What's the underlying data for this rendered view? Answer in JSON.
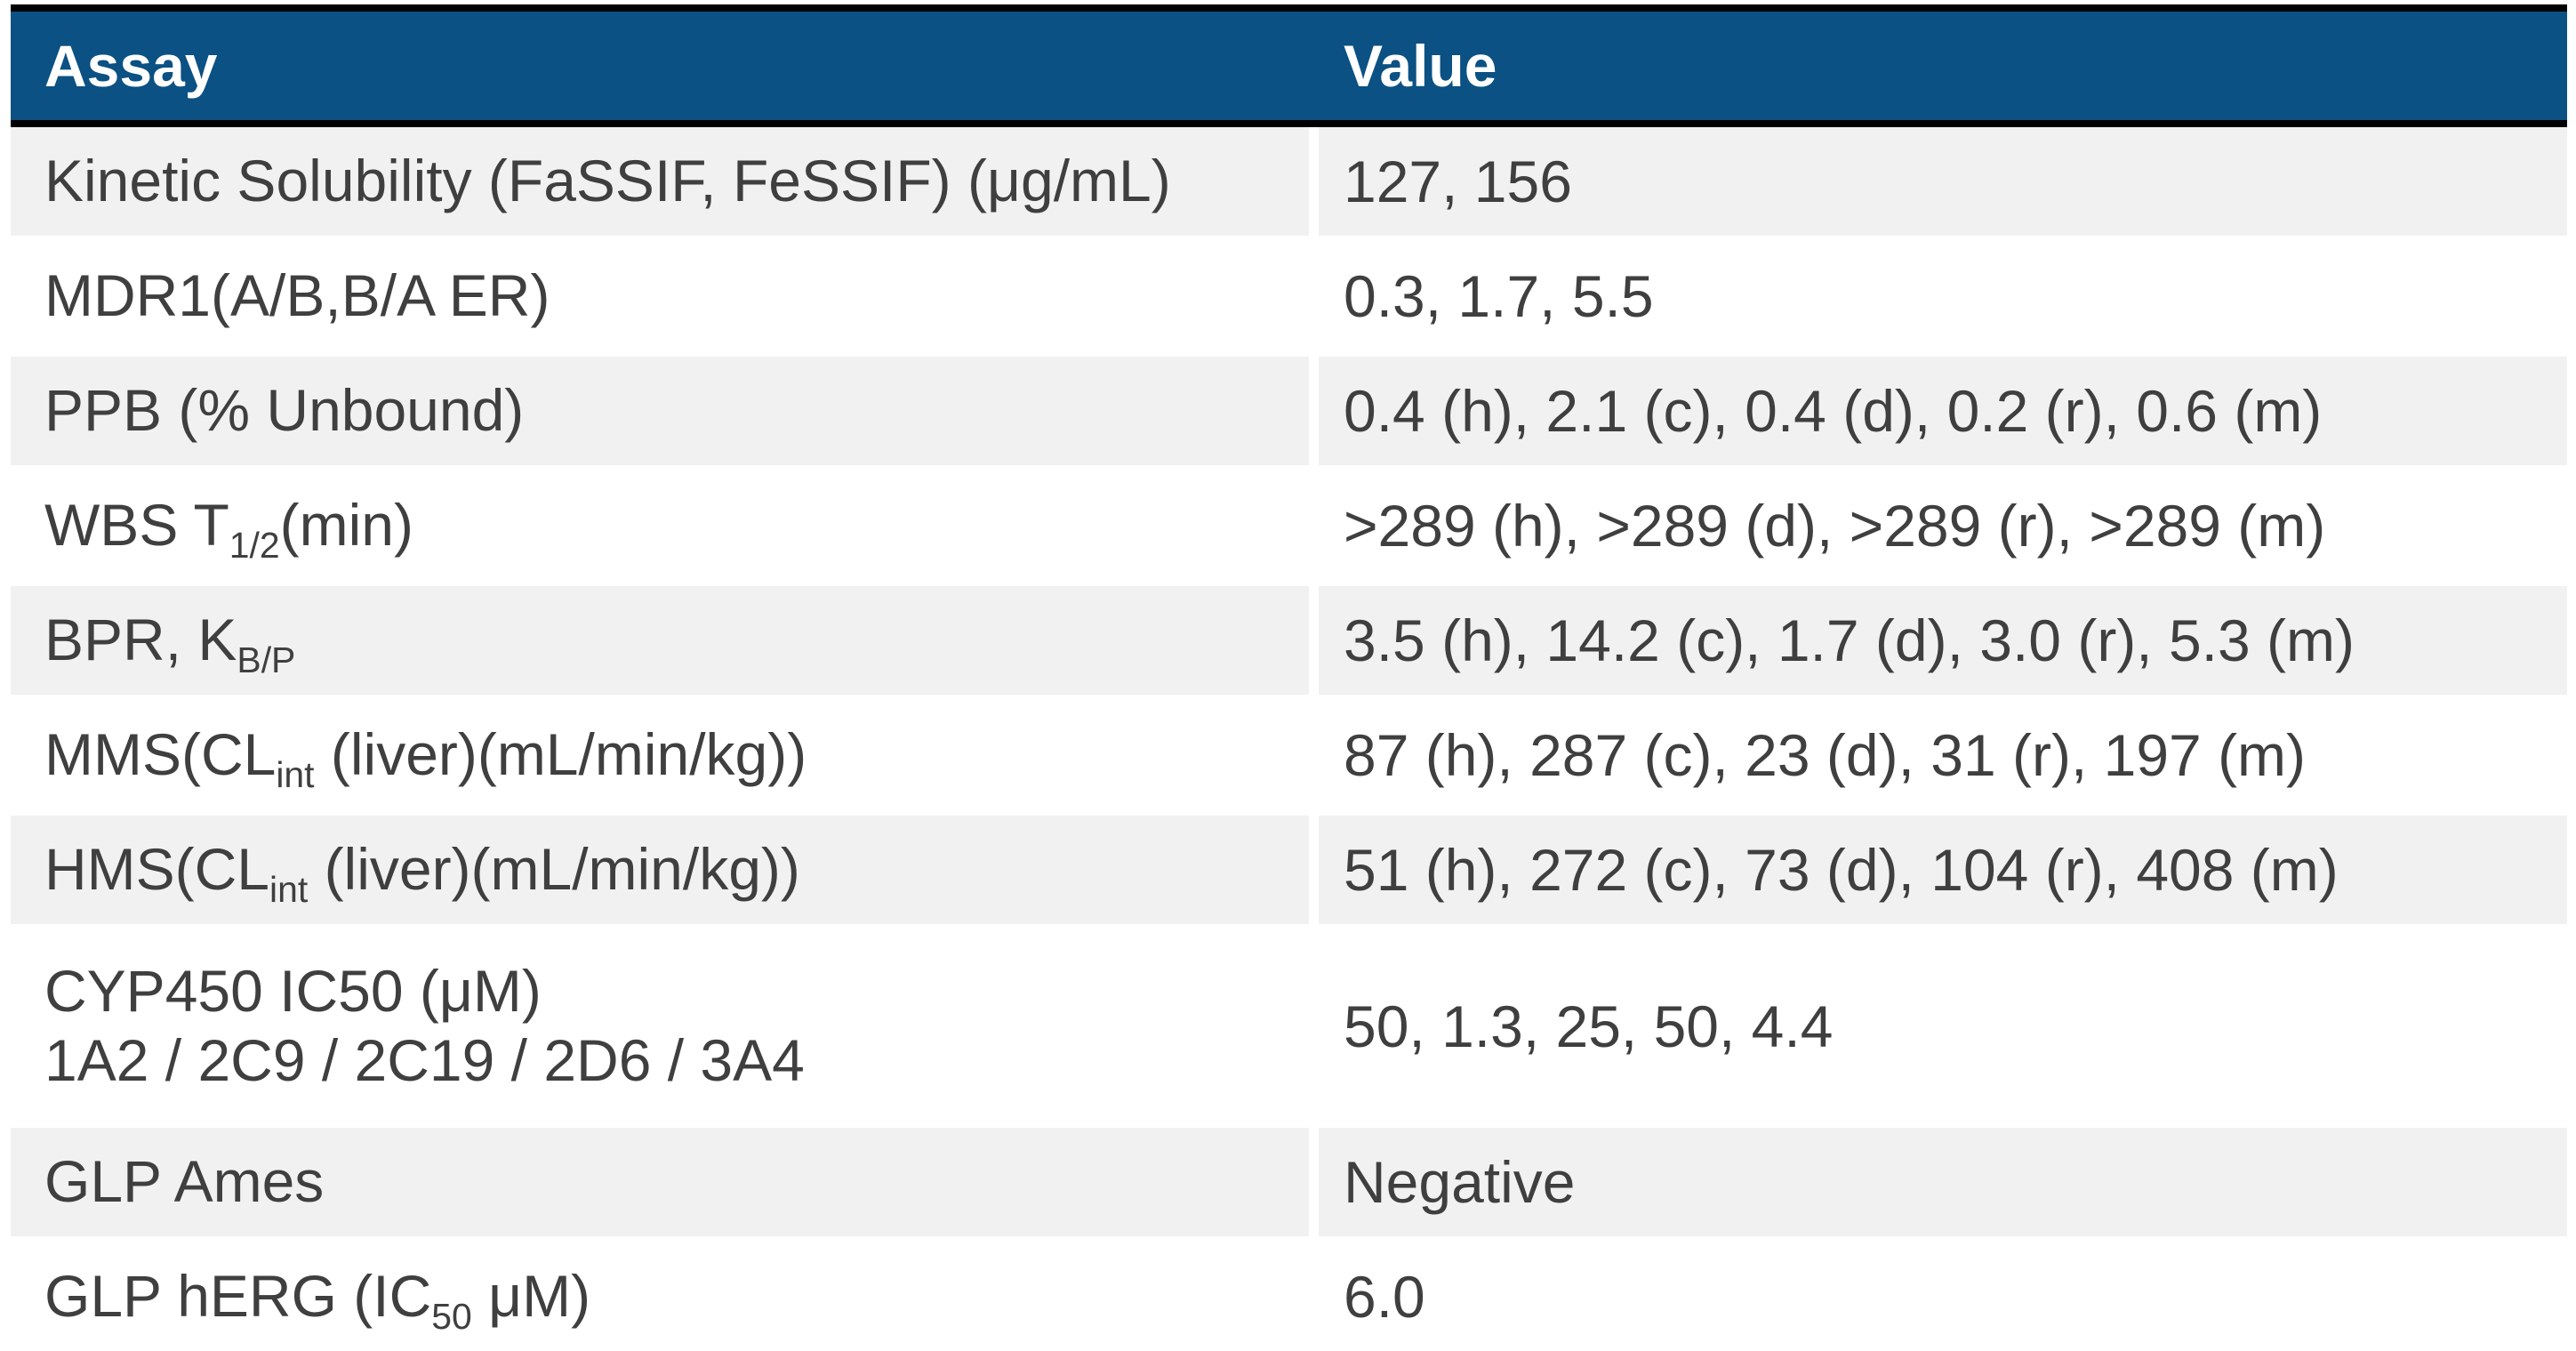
{
  "table": {
    "columns": [
      {
        "label": "Assay"
      },
      {
        "label": "Value"
      }
    ],
    "rows": [
      {
        "assay": [
          {
            "t": "Kinetic Solubility (FaSSIF, FeSSIF) (μg/mL)"
          }
        ],
        "value": "127, 156"
      },
      {
        "assay": [
          {
            "t": "MDR1(A/B,B/A ER)"
          }
        ],
        "value": "0.3, 1.7, 5.5"
      },
      {
        "assay": [
          {
            "t": "PPB (% Unbound)"
          }
        ],
        "value": "0.4 (h), 2.1 (c), 0.4 (d), 0.2 (r), 0.6 (m)"
      },
      {
        "assay": [
          {
            "t": "WBS T"
          },
          {
            "t": "1/2",
            "sub": true
          },
          {
            "t": "(min)"
          }
        ],
        "value": ">289 (h), >289 (d), >289 (r), >289 (m)"
      },
      {
        "assay": [
          {
            "t": "BPR, K"
          },
          {
            "t": "B/P",
            "sub": true
          }
        ],
        "value": "3.5 (h), 14.2 (c), 1.7 (d), 3.0 (r), 5.3 (m)"
      },
      {
        "assay": [
          {
            "t": "MMS(CL"
          },
          {
            "t": "int",
            "sub": true
          },
          {
            "t": " (liver)(mL/min/kg))"
          }
        ],
        "value": "87 (h), 287 (c), 23 (d), 31 (r), 197 (m)"
      },
      {
        "assay": [
          {
            "t": "HMS(CL"
          },
          {
            "t": "int",
            "sub": true
          },
          {
            "t": " (liver)(mL/min/kg))"
          }
        ],
        "value": "51 (h), 272 (c), 73 (d), 104 (r), 408 (m)"
      },
      {
        "assay": [
          {
            "t": "CYP450 IC50 (μM)"
          },
          {
            "br": true
          },
          {
            "t": "1A2 / 2C9 / 2C19 / 2D6 / 3A4"
          }
        ],
        "value": "50, 1.3, 25, 50, 4.4",
        "tall": true
      },
      {
        "assay": [
          {
            "t": "GLP Ames"
          }
        ],
        "value": "Negative"
      },
      {
        "assay": [
          {
            "t": "GLP hERG (IC"
          },
          {
            "t": "50",
            "sub": true
          },
          {
            "t": " μM)"
          }
        ],
        "value": "6.0"
      }
    ]
  },
  "colors": {
    "header_bg": "#0b5183",
    "header_text": "#ffffff",
    "border": "#000000",
    "row_stripe": "#f1f1f1",
    "row_plain": "#ffffff",
    "body_text": "#3f3f3f"
  }
}
